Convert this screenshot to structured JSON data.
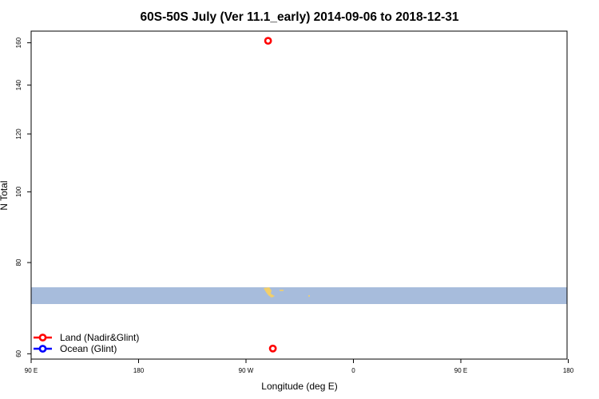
{
  "chart_data": {
    "type": "scatter",
    "title": "60S-50S July (Ver 11.1_early)   2014-09-06 to 2018-12-31",
    "xlabel": "Longitude (deg E)",
    "ylabel": "N Total",
    "xlim": [
      90,
      450
    ],
    "y_scale": "log",
    "ylim": [
      59,
      166
    ],
    "x_ticks": [
      {
        "value": 90,
        "label": "90 E"
      },
      {
        "value": 180,
        "label": "180"
      },
      {
        "value": 270,
        "label": "90 W"
      },
      {
        "value": 360,
        "label": "0"
      },
      {
        "value": 450,
        "label": "90 E"
      },
      {
        "value": 540,
        "label": "180"
      }
    ],
    "y_ticks": [
      {
        "value": 60,
        "label": "60"
      },
      {
        "value": 80,
        "label": "80"
      },
      {
        "value": 100,
        "label": "100"
      },
      {
        "value": 120,
        "label": "120"
      },
      {
        "value": 140,
        "label": "140"
      },
      {
        "value": 160,
        "label": "160"
      }
    ],
    "grid": false,
    "legend_placement": "bottom-left",
    "map_band": {
      "lat_range": [
        "60S",
        "50S"
      ],
      "ocean_color": "#a7bcdc",
      "land_color": "#f2cf6a"
    },
    "series": [
      {
        "name": "Land (Nadir&Glint)",
        "color": "#ff0000",
        "points": [
          {
            "x": 288.5,
            "y": 161
          },
          {
            "x": 292.5,
            "y": 61
          }
        ]
      },
      {
        "name": "Ocean (Glint)",
        "color": "#0000ff",
        "points": []
      }
    ]
  }
}
